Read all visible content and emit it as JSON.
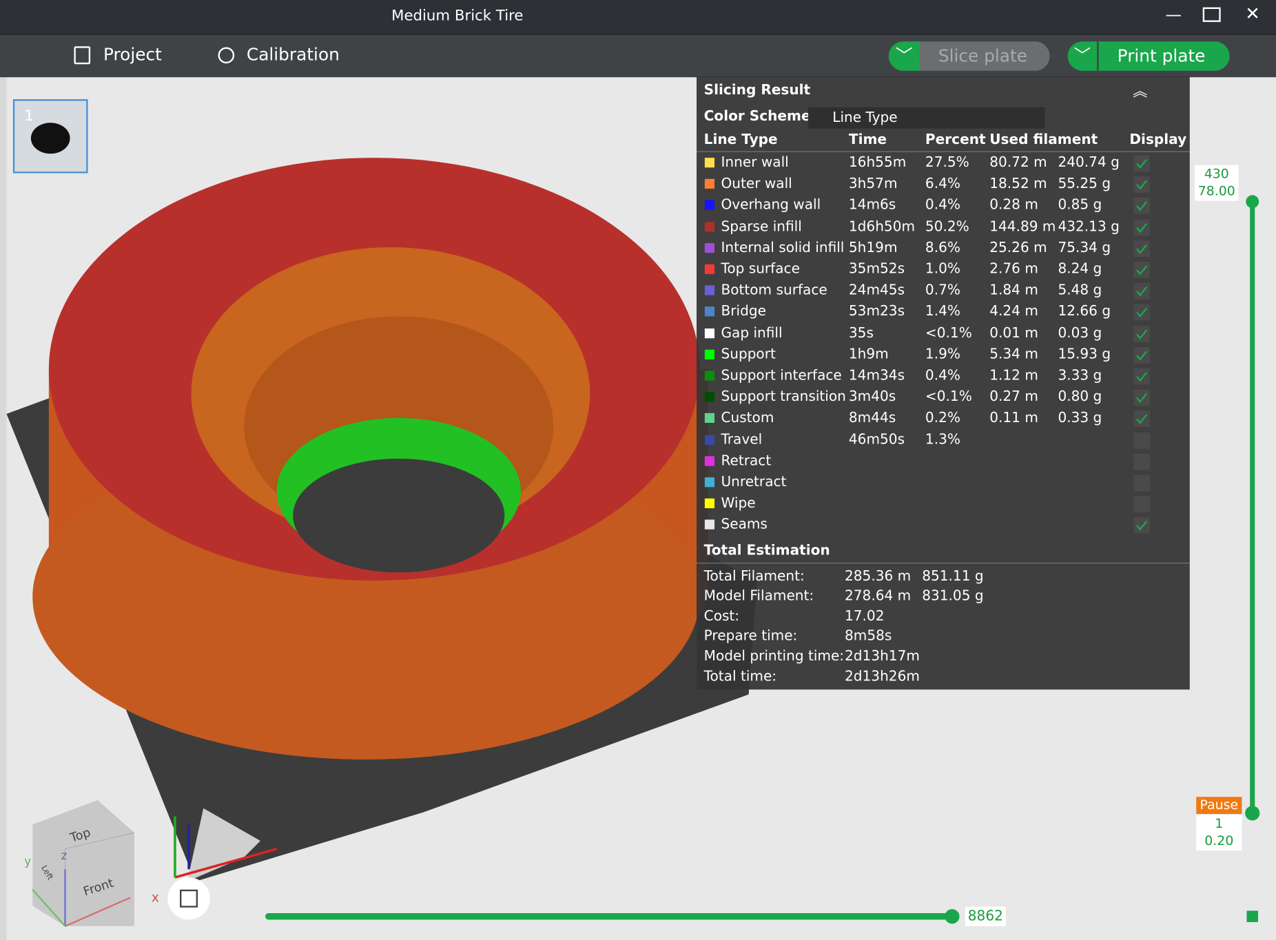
{
  "window_title": "Medium Brick Tire",
  "toolbar": {
    "project": "Project",
    "calibration": "Calibration",
    "slice": "Slice plate",
    "print": "Print plate"
  },
  "plate_number": "1",
  "panel": {
    "title": "Slicing Result",
    "color_scheme_label": "Color Scheme",
    "color_scheme": "Line Type",
    "headers": [
      "Line Type",
      "Time",
      "Percent",
      "Used filament",
      "Display"
    ],
    "rows": [
      {
        "name": "Inner wall",
        "color": "#ffe04a",
        "time": "16h55m",
        "percent": "27.5%",
        "length": "80.72 m",
        "weight": "240.74 g",
        "display": true
      },
      {
        "name": "Outer wall",
        "color": "#ff7f32",
        "time": "3h57m",
        "percent": "6.4%",
        "length": "18.52 m",
        "weight": "55.25 g",
        "display": true
      },
      {
        "name": "Overhang wall",
        "color": "#1414ff",
        "time": "14m6s",
        "percent": "0.4%",
        "length": "0.28 m",
        "weight": "0.85 g",
        "display": true
      },
      {
        "name": "Sparse infill",
        "color": "#b0302a",
        "time": "1d6h50m",
        "percent": "50.2%",
        "length": "144.89 m",
        "weight": "432.13 g",
        "display": true
      },
      {
        "name": "Internal solid infill",
        "color": "#9f4fd7",
        "time": "5h19m",
        "percent": "8.6%",
        "length": "25.26 m",
        "weight": "75.34 g",
        "display": true
      },
      {
        "name": "Top surface",
        "color": "#f03a3a",
        "time": "35m52s",
        "percent": "1.0%",
        "length": "2.76 m",
        "weight": "8.24 g",
        "display": true
      },
      {
        "name": "Bottom surface",
        "color": "#6b5fd9",
        "time": "24m45s",
        "percent": "0.7%",
        "length": "1.84 m",
        "weight": "5.48 g",
        "display": true
      },
      {
        "name": "Bridge",
        "color": "#4f83c9",
        "time": "53m23s",
        "percent": "1.4%",
        "length": "4.24 m",
        "weight": "12.66 g",
        "display": true
      },
      {
        "name": "Gap infill",
        "color": "#ffffff",
        "time": "35s",
        "percent": "<0.1%",
        "length": "0.01 m",
        "weight": "0.03 g",
        "display": true
      },
      {
        "name": "Support",
        "color": "#00ff00",
        "time": "1h9m",
        "percent": "1.9%",
        "length": "5.34 m",
        "weight": "15.93 g",
        "display": true
      },
      {
        "name": "Support interface",
        "color": "#0a8f0a",
        "time": "14m34s",
        "percent": "0.4%",
        "length": "1.12 m",
        "weight": "3.33 g",
        "display": true
      },
      {
        "name": "Support transition",
        "color": "#004d00",
        "time": "3m40s",
        "percent": "<0.1%",
        "length": "0.27 m",
        "weight": "0.80 g",
        "display": true
      },
      {
        "name": "Custom",
        "color": "#5fd28c",
        "time": "8m44s",
        "percent": "0.2%",
        "length": "0.11 m",
        "weight": "0.33 g",
        "display": true
      },
      {
        "name": "Travel",
        "color": "#3b47a8",
        "time": "46m50s",
        "percent": "1.3%",
        "display": false
      },
      {
        "name": "Retract",
        "color": "#e02fe0",
        "display": false
      },
      {
        "name": "Unretract",
        "color": "#3fb0d8",
        "display": false
      },
      {
        "name": "Wipe",
        "color": "#ffff00",
        "display": false
      },
      {
        "name": "Seams",
        "color": "#e6e6e6",
        "display": true
      }
    ],
    "total_title": "Total Estimation",
    "totals": [
      {
        "label": "Total Filament:",
        "values": [
          "285.36 m",
          "851.11 g"
        ]
      },
      {
        "label": "Model Filament:",
        "values": [
          "278.64 m",
          "831.05 g"
        ]
      },
      {
        "label": "Cost:",
        "values": [
          "17.02"
        ]
      },
      {
        "label": "Prepare time:",
        "values": [
          "8m58s"
        ]
      },
      {
        "label": "Model printing time:",
        "values": [
          "2d13h17m"
        ]
      },
      {
        "label": "Total time:",
        "values": [
          "2d13h26m"
        ]
      }
    ]
  },
  "layer_slider": {
    "top_layer": "430",
    "top_height": "78.00",
    "pause": "Pause",
    "bottom_layer": "1",
    "bottom_height": "0.20"
  },
  "move_slider": "8862",
  "view_cube": {
    "top": "Top",
    "front": "Front",
    "left": "Left"
  },
  "axes": {
    "x": "x",
    "y": "y",
    "z": "z"
  }
}
